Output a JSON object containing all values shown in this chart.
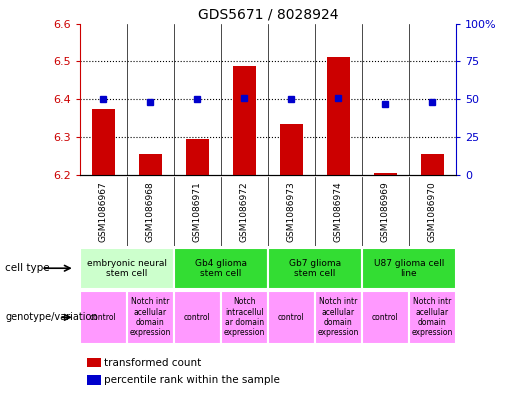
{
  "title": "GDS5671 / 8028924",
  "samples": [
    "GSM1086967",
    "GSM1086968",
    "GSM1086971",
    "GSM1086972",
    "GSM1086973",
    "GSM1086974",
    "GSM1086969",
    "GSM1086970"
  ],
  "red_values": [
    6.375,
    6.255,
    6.295,
    6.488,
    6.335,
    6.512,
    6.205,
    6.255
  ],
  "blue_values": [
    50,
    48,
    50,
    51,
    50,
    51,
    47,
    48
  ],
  "ylim_left": [
    6.2,
    6.6
  ],
  "ylim_right": [
    0,
    100
  ],
  "yticks_left": [
    6.2,
    6.3,
    6.4,
    6.5,
    6.6
  ],
  "yticks_right": [
    0,
    25,
    50,
    75,
    100
  ],
  "cell_types": [
    {
      "label": "embryonic neural\nstem cell",
      "start": 0,
      "end": 2,
      "color": "#ccffcc"
    },
    {
      "label": "Gb4 glioma\nstem cell",
      "start": 2,
      "end": 4,
      "color": "#33dd33"
    },
    {
      "label": "Gb7 glioma\nstem cell",
      "start": 4,
      "end": 6,
      "color": "#33dd33"
    },
    {
      "label": "U87 glioma cell\nline",
      "start": 6,
      "end": 8,
      "color": "#33dd33"
    }
  ],
  "genotypes": [
    {
      "label": "control",
      "start": 0,
      "end": 1,
      "color": "#ff99ff"
    },
    {
      "label": "Notch intr\nacellular\ndomain\nexpression",
      "start": 1,
      "end": 2,
      "color": "#ff99ff"
    },
    {
      "label": "control",
      "start": 2,
      "end": 3,
      "color": "#ff99ff"
    },
    {
      "label": "Notch\nintracellul\nar domain\nexpression",
      "start": 3,
      "end": 4,
      "color": "#ff99ff"
    },
    {
      "label": "control",
      "start": 4,
      "end": 5,
      "color": "#ff99ff"
    },
    {
      "label": "Notch intr\nacellular\ndomain\nexpression",
      "start": 5,
      "end": 6,
      "color": "#ff99ff"
    },
    {
      "label": "control",
      "start": 6,
      "end": 7,
      "color": "#ff99ff"
    },
    {
      "label": "Notch intr\nacellular\ndomain\nexpression",
      "start": 7,
      "end": 8,
      "color": "#ff99ff"
    }
  ],
  "bar_color": "#cc0000",
  "dot_color": "#0000cc",
  "left_axis_color": "#cc0000",
  "right_axis_color": "#0000cc",
  "bg_gray": "#cccccc",
  "cell_type_label_fontsize": 6.5,
  "genotype_label_fontsize": 5.5
}
